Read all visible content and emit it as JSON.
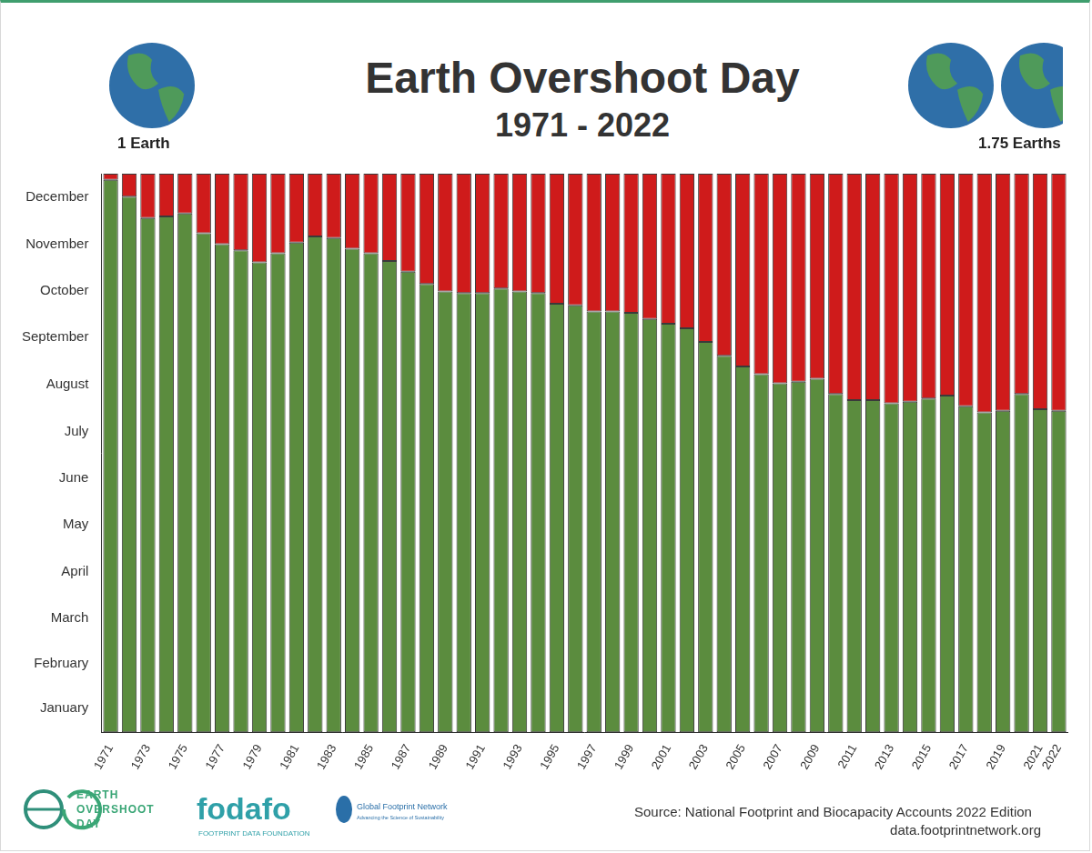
{
  "chart_data": {
    "type": "bar",
    "title": "Earth Overshoot Day",
    "subtitle": "1971 - 2022",
    "categories": [
      "1971",
      null,
      "1973",
      null,
      "1975",
      null,
      "1977",
      null,
      "1979",
      null,
      "1981",
      null,
      "1983",
      null,
      "1985",
      null,
      "1987",
      null,
      "1989",
      null,
      "1991",
      null,
      "1993",
      null,
      "1995",
      null,
      "1997",
      null,
      "1999",
      null,
      "2001",
      null,
      "2003",
      null,
      "2005",
      null,
      "2007",
      null,
      "2009",
      null,
      "2011",
      null,
      "2013",
      null,
      "2015",
      null,
      "2017",
      null,
      "2019",
      null,
      "2021",
      "2022"
    ],
    "series": [
      {
        "color": "#5b8c3e",
        "values": [
          361,
          350,
          336,
          337,
          339,
          326,
          319,
          315,
          307,
          313,
          320,
          324,
          323,
          316,
          313,
          308,
          301,
          293,
          288,
          287,
          287,
          290,
          288,
          287,
          280,
          279,
          275,
          275,
          274,
          270,
          267,
          264,
          255,
          246,
          239,
          234,
          228,
          229,
          231,
          221,
          217,
          217,
          215,
          216,
          218,
          220,
          213,
          209,
          210,
          221,
          211,
          210
        ]
      },
      {
        "color": "#cf1b1b",
        "values": [
          4,
          15,
          29,
          28,
          26,
          39,
          46,
          50,
          58,
          52,
          45,
          41,
          42,
          49,
          52,
          57,
          64,
          72,
          77,
          78,
          78,
          75,
          77,
          78,
          85,
          86,
          90,
          90,
          91,
          95,
          98,
          101,
          110,
          119,
          126,
          131,
          137,
          136,
          134,
          144,
          148,
          148,
          150,
          149,
          147,
          145,
          152,
          156,
          155,
          144,
          154,
          155
        ]
      }
    ],
    "stacked": true,
    "grid": false,
    "ylim": [
      0,
      365
    ],
    "yticks": [
      {
        "value": 15.5,
        "label": "January"
      },
      {
        "value": 45,
        "label": "February"
      },
      {
        "value": 74.5,
        "label": "March"
      },
      {
        "value": 105,
        "label": "April"
      },
      {
        "value": 135.5,
        "label": "May"
      },
      {
        "value": 166,
        "label": "June"
      },
      {
        "value": 196.5,
        "label": "July"
      },
      {
        "value": 227.5,
        "label": "August"
      },
      {
        "value": 258,
        "label": "September"
      },
      {
        "value": 288.5,
        "label": "October"
      },
      {
        "value": 319,
        "label": "November"
      },
      {
        "value": 349.5,
        "label": "December"
      }
    ],
    "annotations": [
      "1 Earth",
      "1.75 Earths",
      "EARTH",
      "OVERSHOOT",
      "DAY",
      "fodafo",
      "FOOTPRINT DATA FOUNDATION",
      "Global Footprint Network",
      "Advancing the Science of Sustainability",
      "Source: National Footprint and Biocapacity Accounts 2022 Edition",
      "data.footprintnetwork.org"
    ]
  }
}
